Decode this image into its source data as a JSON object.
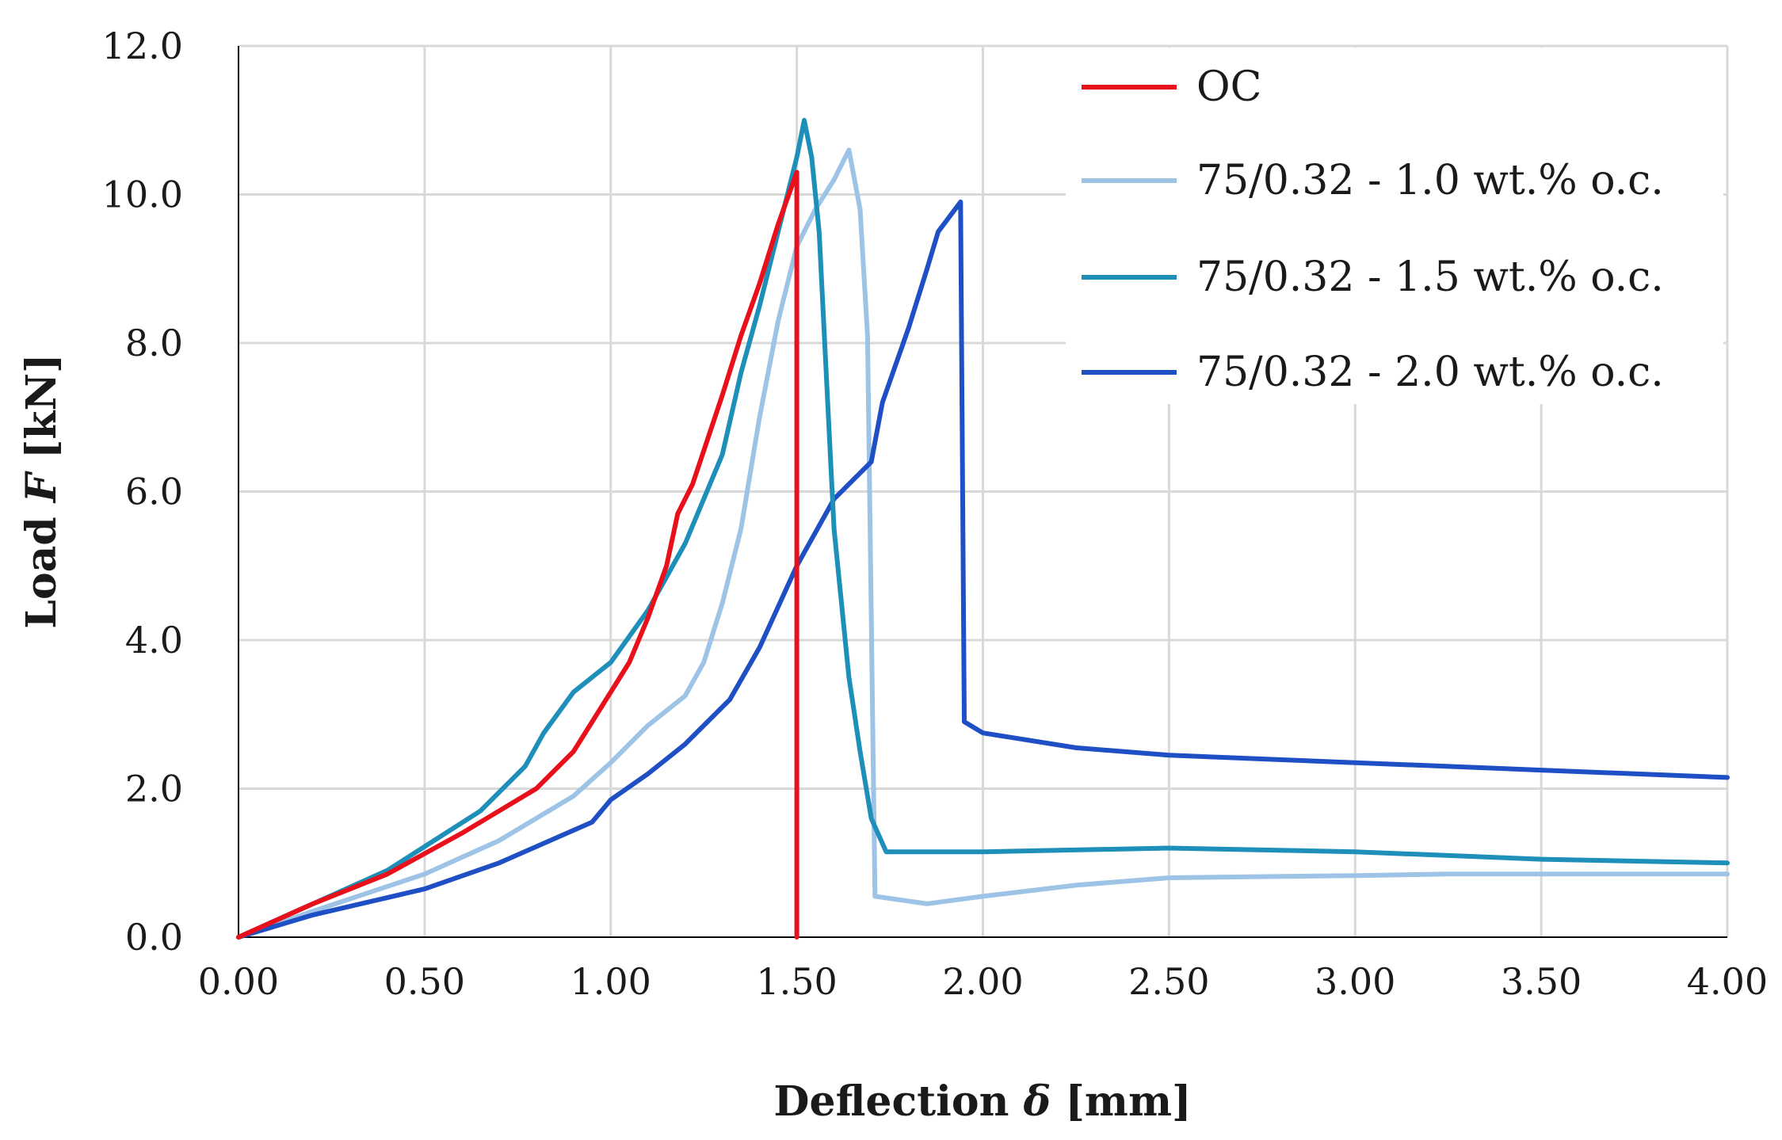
{
  "chart_data": {
    "type": "line",
    "title": "",
    "xlabel": {
      "text": "Deflection ",
      "symbol": "δ",
      "unit": " [mm]"
    },
    "ylabel": {
      "text": "Load ",
      "symbol": "F",
      "unit": " [kN]"
    },
    "xlim": [
      0,
      4
    ],
    "ylim": [
      0,
      12
    ],
    "xticks": [
      "0.00",
      "0.50",
      "1.00",
      "1.50",
      "2.00",
      "2.50",
      "3.00",
      "3.50",
      "4.00"
    ],
    "yticks": [
      "0.0",
      "2.0",
      "4.0",
      "6.0",
      "8.0",
      "10.0",
      "12.0"
    ],
    "grid": true,
    "legend_position": "top-right",
    "series": [
      {
        "name": "OC",
        "color": "#e8101a",
        "points": [
          [
            0,
            0
          ],
          [
            0.2,
            0.45
          ],
          [
            0.4,
            0.85
          ],
          [
            0.6,
            1.4
          ],
          [
            0.8,
            2.0
          ],
          [
            0.9,
            2.5
          ],
          [
            1.0,
            3.3
          ],
          [
            1.05,
            3.7
          ],
          [
            1.1,
            4.3
          ],
          [
            1.15,
            5.0
          ],
          [
            1.18,
            5.7
          ],
          [
            1.22,
            6.1
          ],
          [
            1.3,
            7.3
          ],
          [
            1.35,
            8.1
          ],
          [
            1.4,
            8.8
          ],
          [
            1.45,
            9.6
          ],
          [
            1.5,
            10.3
          ],
          [
            1.5,
            0
          ]
        ]
      },
      {
        "name": "75/0.32 - 1.0 wt.% o.c.",
        "color": "#9dc3e6",
        "points": [
          [
            0,
            0
          ],
          [
            0.2,
            0.35
          ],
          [
            0.5,
            0.85
          ],
          [
            0.7,
            1.3
          ],
          [
            0.9,
            1.9
          ],
          [
            1.0,
            2.35
          ],
          [
            1.1,
            2.85
          ],
          [
            1.2,
            3.25
          ],
          [
            1.25,
            3.7
          ],
          [
            1.3,
            4.5
          ],
          [
            1.35,
            5.5
          ],
          [
            1.4,
            7.0
          ],
          [
            1.45,
            8.3
          ],
          [
            1.5,
            9.3
          ],
          [
            1.55,
            9.8
          ],
          [
            1.6,
            10.2
          ],
          [
            1.64,
            10.6
          ],
          [
            1.67,
            9.8
          ],
          [
            1.69,
            8.1
          ],
          [
            1.71,
            0.55
          ],
          [
            1.85,
            0.45
          ],
          [
            2.0,
            0.55
          ],
          [
            2.25,
            0.7
          ],
          [
            2.5,
            0.8
          ],
          [
            3.0,
            0.83
          ],
          [
            3.25,
            0.85
          ],
          [
            3.5,
            0.85
          ],
          [
            4.0,
            0.85
          ]
        ]
      },
      {
        "name": "75/0.32 - 1.5 wt.% o.c.",
        "color": "#1e8fb8",
        "points": [
          [
            0,
            0
          ],
          [
            0.2,
            0.45
          ],
          [
            0.4,
            0.9
          ],
          [
            0.65,
            1.7
          ],
          [
            0.77,
            2.3
          ],
          [
            0.82,
            2.75
          ],
          [
            0.9,
            3.3
          ],
          [
            1.0,
            3.7
          ],
          [
            1.1,
            4.4
          ],
          [
            1.2,
            5.3
          ],
          [
            1.3,
            6.5
          ],
          [
            1.35,
            7.6
          ],
          [
            1.4,
            8.5
          ],
          [
            1.45,
            9.5
          ],
          [
            1.5,
            10.5
          ],
          [
            1.52,
            11.0
          ],
          [
            1.54,
            10.5
          ],
          [
            1.56,
            9.5
          ],
          [
            1.58,
            7.5
          ],
          [
            1.6,
            5.5
          ],
          [
            1.62,
            4.5
          ],
          [
            1.64,
            3.5
          ],
          [
            1.67,
            2.5
          ],
          [
            1.7,
            1.6
          ],
          [
            1.74,
            1.15
          ],
          [
            2.0,
            1.15
          ],
          [
            2.5,
            1.2
          ],
          [
            3.0,
            1.15
          ],
          [
            3.5,
            1.05
          ],
          [
            4.0,
            1.0
          ]
        ]
      },
      {
        "name": "75/0.32 - 2.0 wt.% o.c.",
        "color": "#1f4fc4",
        "points": [
          [
            0,
            0
          ],
          [
            0.2,
            0.3
          ],
          [
            0.5,
            0.65
          ],
          [
            0.7,
            1.0
          ],
          [
            0.95,
            1.55
          ],
          [
            1.0,
            1.85
          ],
          [
            1.1,
            2.2
          ],
          [
            1.2,
            2.6
          ],
          [
            1.32,
            3.2
          ],
          [
            1.4,
            3.9
          ],
          [
            1.5,
            5.0
          ],
          [
            1.6,
            5.9
          ],
          [
            1.7,
            6.4
          ],
          [
            1.73,
            7.2
          ],
          [
            1.8,
            8.2
          ],
          [
            1.85,
            9.0
          ],
          [
            1.88,
            9.5
          ],
          [
            1.94,
            9.9
          ],
          [
            1.95,
            2.9
          ],
          [
            2.0,
            2.75
          ],
          [
            2.25,
            2.55
          ],
          [
            2.5,
            2.45
          ],
          [
            3.0,
            2.35
          ],
          [
            3.5,
            2.25
          ],
          [
            4.0,
            2.15
          ]
        ]
      }
    ]
  }
}
